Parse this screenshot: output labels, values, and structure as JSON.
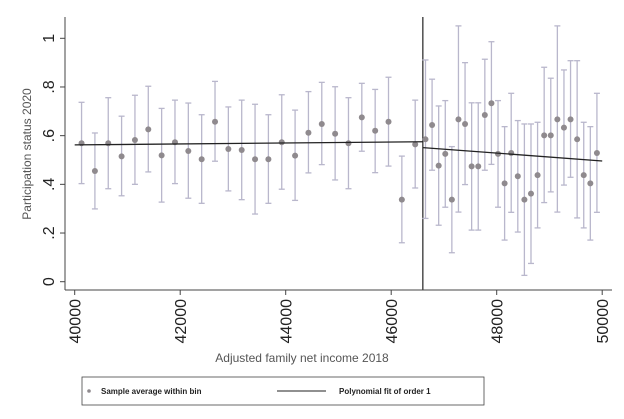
{
  "chart_data": {
    "type": "scatter",
    "xlabel": "Adjusted family net income 2018",
    "ylabel": "Participation status 2020",
    "xlim": [
      40000,
      50000
    ],
    "ylim": [
      0,
      1
    ],
    "xticks": [
      40000,
      42000,
      44000,
      46000,
      48000,
      50000
    ],
    "yticks": [
      0,
      0.2,
      0.4,
      0.6,
      0.8,
      1
    ],
    "ytick_labels": [
      "0",
      ".2",
      ".4",
      ".6",
      ".8",
      "1"
    ],
    "grid": false,
    "cutoff": 46600,
    "colors": {
      "points": "#8f8a8e",
      "error_bars": "#b9b7cc",
      "fit": "#222222"
    },
    "legend": {
      "placement": "bottom",
      "entries": [
        "Sample average within bin",
        "Polynomial fit of order 1"
      ]
    },
    "left_bins": {
      "x_start": 40130,
      "x_step": 253,
      "y": [
        0.569,
        0.455,
        0.569,
        0.515,
        0.582,
        0.626,
        0.519,
        0.573,
        0.537,
        0.503,
        0.657,
        0.545,
        0.541,
        0.503,
        0.503,
        0.573,
        0.518,
        0.612,
        0.648,
        0.608,
        0.569,
        0.675,
        0.62,
        0.657,
        0.337,
        0.564
      ],
      "lo": [
        0.403,
        0.299,
        0.382,
        0.353,
        0.4,
        0.451,
        0.327,
        0.403,
        0.343,
        0.322,
        0.495,
        0.373,
        0.337,
        0.278,
        0.322,
        0.38,
        0.334,
        0.447,
        0.481,
        0.418,
        0.382,
        0.536,
        0.448,
        0.475,
        0.16,
        0.385
      ],
      "hi": [
        0.737,
        0.611,
        0.756,
        0.68,
        0.766,
        0.803,
        0.712,
        0.746,
        0.734,
        0.686,
        0.823,
        0.718,
        0.746,
        0.729,
        0.686,
        0.768,
        0.705,
        0.781,
        0.819,
        0.801,
        0.756,
        0.815,
        0.79,
        0.84,
        0.516,
        0.746
      ]
    },
    "right_bins": {
      "x_start": 46650,
      "x_step": 125,
      "y": [
        0.585,
        0.644,
        0.477,
        0.525,
        0.337,
        0.667,
        0.648,
        0.474,
        0.474,
        0.685,
        0.733,
        0.525,
        0.404,
        0.529,
        0.433,
        0.337,
        0.362,
        0.438,
        0.601,
        0.601,
        0.667,
        0.633,
        0.667,
        0.585,
        0.438,
        0.404,
        0.529
      ],
      "lo": [
        0.26,
        0.458,
        0.232,
        0.306,
        0.119,
        0.286,
        0.399,
        0.212,
        0.212,
        0.458,
        0.482,
        0.306,
        0.171,
        0.285,
        0.204,
        0.026,
        0.075,
        0.221,
        0.325,
        0.369,
        0.286,
        0.397,
        0.429,
        0.262,
        0.221,
        0.171,
        0.285
      ],
      "hi": [
        0.911,
        0.832,
        0.722,
        0.744,
        0.555,
        1.051,
        0.9,
        0.735,
        0.735,
        0.914,
        0.986,
        0.744,
        0.637,
        0.774,
        0.662,
        0.648,
        0.648,
        0.655,
        0.881,
        0.836,
        1.051,
        0.87,
        0.908,
        0.908,
        0.655,
        0.637,
        0.774
      ]
    },
    "fit_left": {
      "x": [
        40000,
        46600
      ],
      "y": [
        0.562,
        0.575
      ]
    },
    "fit_right": {
      "x": [
        46600,
        50000
      ],
      "y": [
        0.551,
        0.496
      ]
    }
  }
}
